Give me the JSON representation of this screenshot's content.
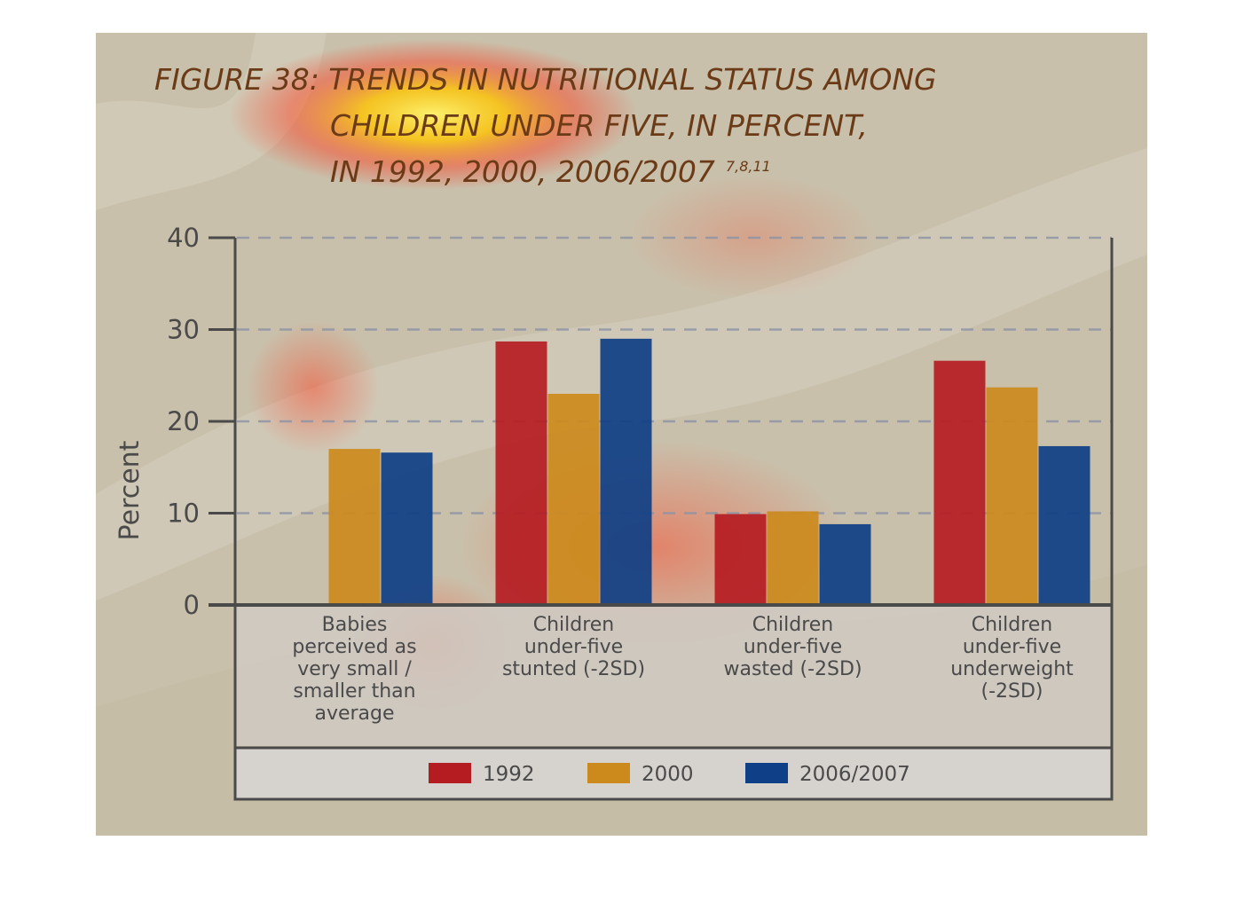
{
  "chart_data": {
    "type": "bar",
    "title": {
      "main": "FIGURE 38: TRENDS IN NUTRITIONAL STATUS AMONG",
      "line2": "CHILDREN UNDER FIVE, IN PERCENT,",
      "line3": "IN 1992, 2000, 2006/2007",
      "superscript": "7,8,11"
    },
    "ylabel": "Percent",
    "ylim": [
      0,
      40
    ],
    "yticks": [
      "0",
      "10",
      "20",
      "30",
      "40"
    ],
    "grid": true,
    "legend_position": "bottom",
    "categories": [
      [
        "Babies",
        "perceived as",
        "very small /",
        "smaller than",
        "average"
      ],
      [
        "Children",
        "under-five",
        "stunted (-2SD)"
      ],
      [
        "Children",
        "under-five",
        "wasted (-2SD)"
      ],
      [
        "Children",
        "under-five",
        "underweight",
        "(-2SD)"
      ]
    ],
    "series": [
      {
        "name": "1992",
        "color": "#b51c22",
        "values": [
          null,
          28.7,
          9.9,
          26.6
        ]
      },
      {
        "name": "2000",
        "color": "#cc8a1c",
        "values": [
          17.0,
          23.0,
          10.2,
          23.7
        ]
      },
      {
        "name": "2006/2007",
        "color": "#0f3f86",
        "values": [
          16.6,
          29.0,
          8.8,
          17.3
        ]
      }
    ]
  }
}
